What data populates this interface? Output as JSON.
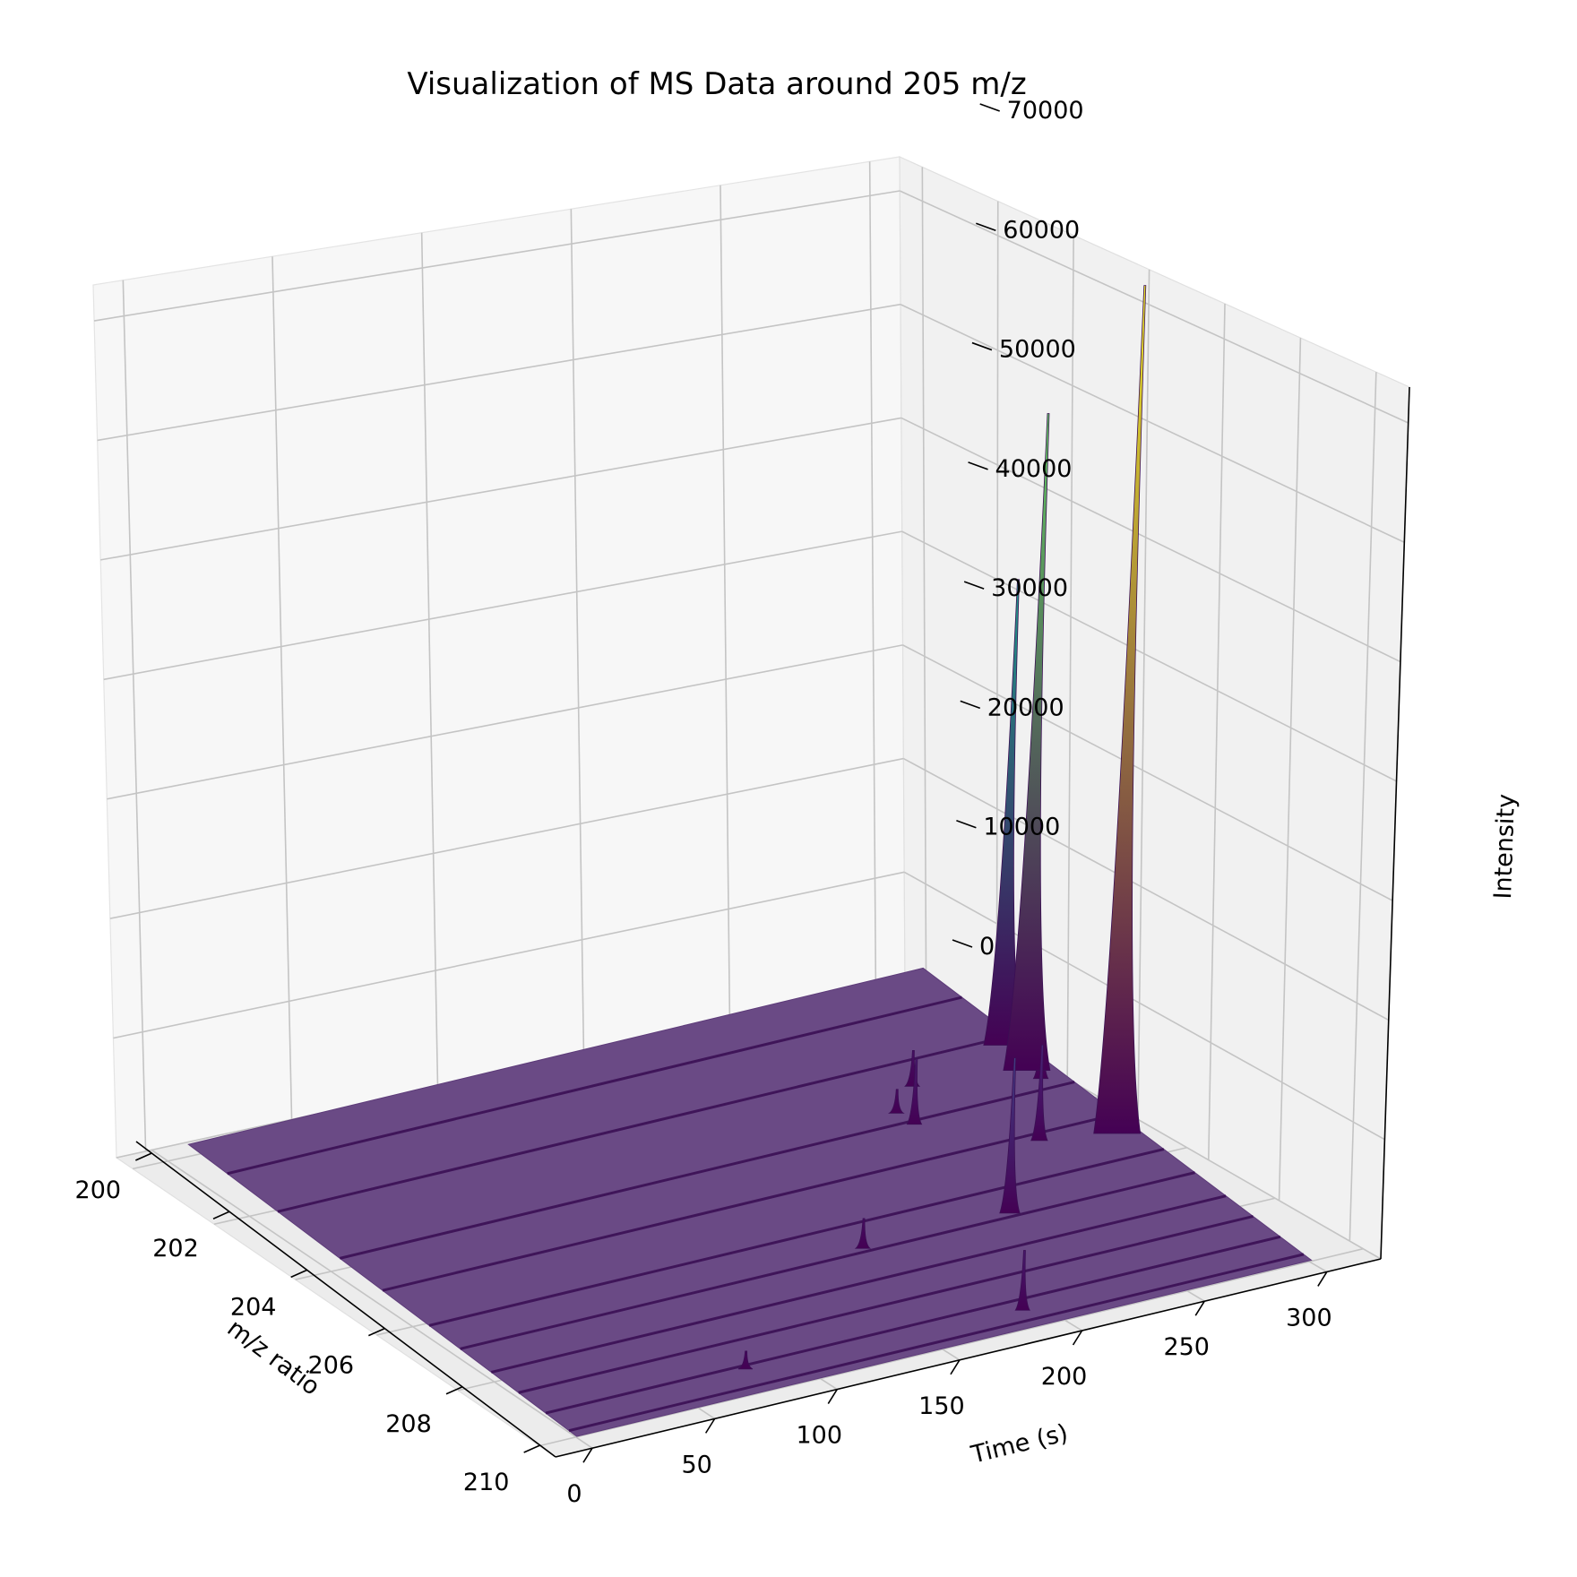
{
  "chart_data": {
    "type": "surface3d",
    "title": "Visualization of MS Data around 205 m/z",
    "xlabel": "m/z ratio",
    "ylabel": "Time (s)",
    "zlabel": "Intensity",
    "x_ticks": [
      "200",
      "202",
      "204",
      "206",
      "208",
      "210"
    ],
    "y_ticks": [
      "0",
      "50",
      "100",
      "150",
      "200",
      "250",
      "300"
    ],
    "z_ticks": [
      "0",
      "10000",
      "20000",
      "30000",
      "40000",
      "50000",
      "60000",
      "70000"
    ],
    "xlim": [
      199.6,
      210.4
    ],
    "ylim": [
      -15,
      322
    ],
    "zlim": [
      0,
      73000
    ],
    "colormap": "viridis",
    "grid": true,
    "peaks": [
      {
        "mz": 205.5,
        "time": 292,
        "intensity": 71000
      },
      {
        "mz": 203.3,
        "time": 290,
        "intensity": 55000
      },
      {
        "mz": 202.5,
        "time": 293,
        "intensity": 39000
      },
      {
        "mz": 205.2,
        "time": 265,
        "intensity": 8000
      },
      {
        "mz": 206.9,
        "time": 226,
        "intensity": 13000
      },
      {
        "mz": 203.6,
        "time": 291,
        "intensity": 5500
      },
      {
        "mz": 204.0,
        "time": 233,
        "intensity": 5500
      },
      {
        "mz": 203.0,
        "time": 248,
        "intensity": 3000
      },
      {
        "mz": 203.6,
        "time": 232,
        "intensity": 2000
      },
      {
        "mz": 206.9,
        "time": 166,
        "intensity": 2500
      },
      {
        "mz": 205.5,
        "time": 298,
        "intensity": 1000
      },
      {
        "mz": 209.5,
        "time": 190,
        "intensity": 5000
      },
      {
        "mz": 209.3,
        "time": 80,
        "intensity": 1500
      }
    ],
    "ridges_mz": [
      201.0,
      202.3,
      203.9,
      205.0,
      206.2,
      207.0,
      207.8,
      208.5,
      209.2,
      209.8
    ]
  }
}
